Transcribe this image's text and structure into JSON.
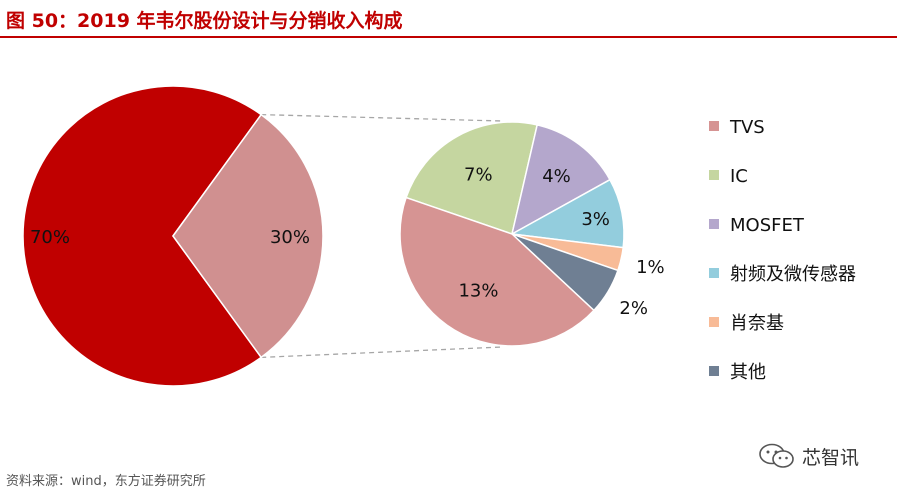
{
  "title": "图 50：2019 年韦尔股份设计与分销收入构成",
  "source_note": "资料来源：wind，东方证券研究所",
  "watermark_text": "芯智讯",
  "watermark_icon": "wechat-icon",
  "colors": {
    "title": "#c00000",
    "main_big": "#c00000",
    "main_small": "#d09090"
  },
  "chart_data": [
    {
      "type": "pie",
      "title": "",
      "slices": [
        {
          "value": 70,
          "label": "70%",
          "color": "#c00000"
        },
        {
          "value": 30,
          "label": "30%",
          "color": "#d09090"
        }
      ]
    },
    {
      "type": "pie",
      "title": "",
      "legend_position": "right",
      "slices": [
        {
          "name": "TVS",
          "value": 13,
          "label": "13%",
          "color": "#d69493"
        },
        {
          "name": "IC",
          "value": 7,
          "label": "7%",
          "color": "#c5d6a0"
        },
        {
          "name": "MOSFET",
          "value": 4,
          "label": "4%",
          "color": "#b4a7cc"
        },
        {
          "name": "射频及微传感器",
          "value": 3,
          "label": "3%",
          "color": "#93cddd"
        },
        {
          "name": "肖奈基",
          "value": 1,
          "label": "1%",
          "color": "#f8bb97"
        },
        {
          "name": "其他",
          "value": 2,
          "label": "2%",
          "color": "#6f7f93"
        }
      ]
    }
  ]
}
